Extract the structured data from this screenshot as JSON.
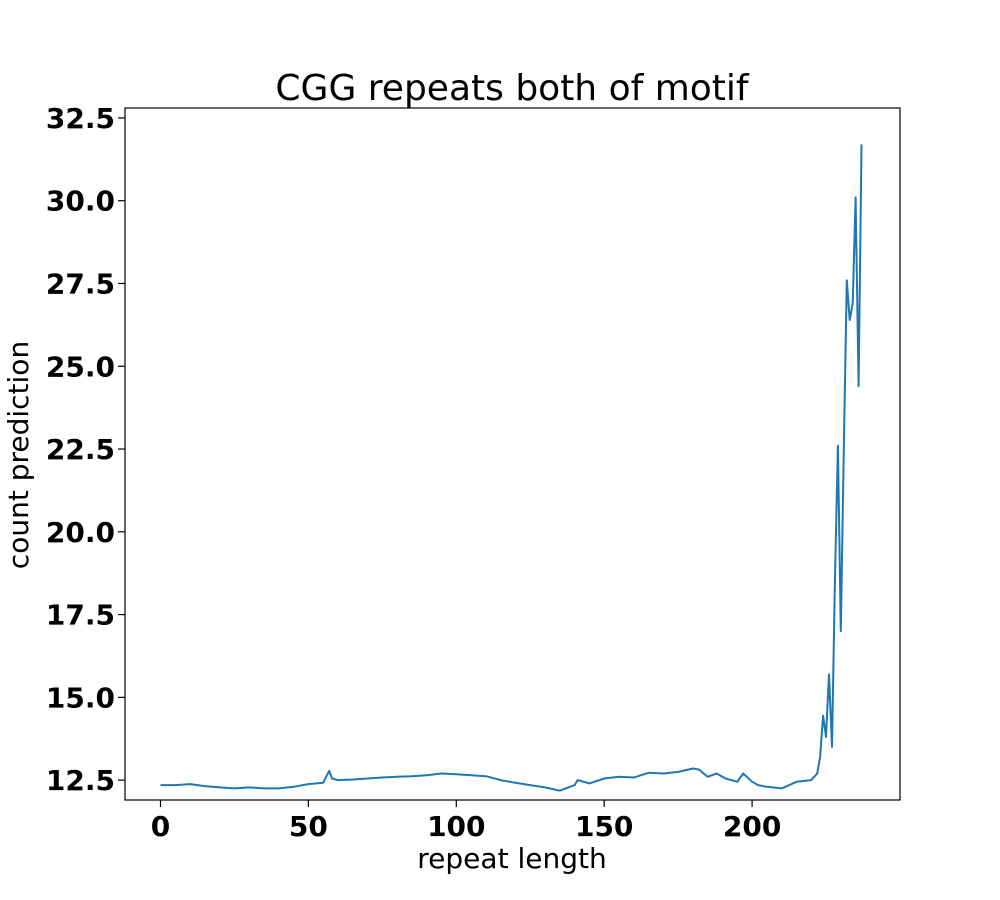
{
  "chart_data": {
    "type": "line",
    "title": "CGG repeats both of motif",
    "xlabel": "repeat length",
    "ylabel": "count prediction",
    "xlim": [
      -12,
      250
    ],
    "ylim": [
      11.9,
      32.8
    ],
    "xticks": [
      0,
      50,
      100,
      150,
      200
    ],
    "xtick_labels": [
      "0",
      "50",
      "100",
      "150",
      "200"
    ],
    "yticks": [
      12.5,
      15.0,
      17.5,
      20.0,
      22.5,
      25.0,
      27.5,
      30.0,
      32.5
    ],
    "ytick_labels": [
      "12.5",
      "15.0",
      "17.5",
      "20.0",
      "22.5",
      "25.0",
      "27.5",
      "30.0",
      "32.5"
    ],
    "grid": false,
    "series": [
      {
        "color": "#1f77b4",
        "x": [
          0,
          5,
          10,
          15,
          20,
          25,
          30,
          35,
          40,
          45,
          50,
          55,
          57,
          58,
          60,
          65,
          70,
          75,
          80,
          85,
          90,
          95,
          100,
          105,
          110,
          115,
          120,
          125,
          130,
          135,
          140,
          141,
          145,
          150,
          155,
          160,
          165,
          170,
          175,
          180,
          182,
          185,
          188,
          191,
          195,
          197,
          200,
          202,
          205,
          210,
          215,
          220,
          222,
          223,
          224,
          225,
          226,
          227,
          228,
          229,
          230,
          231,
          232,
          233,
          234,
          235,
          236,
          237
        ],
        "y": [
          12.35,
          12.35,
          12.38,
          12.32,
          12.28,
          12.25,
          12.28,
          12.25,
          12.25,
          12.3,
          12.38,
          12.42,
          12.78,
          12.55,
          12.5,
          12.52,
          12.55,
          12.58,
          12.6,
          12.62,
          12.65,
          12.7,
          12.68,
          12.65,
          12.62,
          12.5,
          12.42,
          12.35,
          12.28,
          12.18,
          12.35,
          12.5,
          12.4,
          12.55,
          12.6,
          12.58,
          12.72,
          12.7,
          12.75,
          12.85,
          12.82,
          12.6,
          12.7,
          12.55,
          12.45,
          12.7,
          12.45,
          12.35,
          12.3,
          12.25,
          12.45,
          12.5,
          12.7,
          13.2,
          14.45,
          13.8,
          15.7,
          13.5,
          18.5,
          22.6,
          17.0,
          22.5,
          27.6,
          26.4,
          26.9,
          30.1,
          24.4,
          31.7
        ]
      }
    ]
  }
}
